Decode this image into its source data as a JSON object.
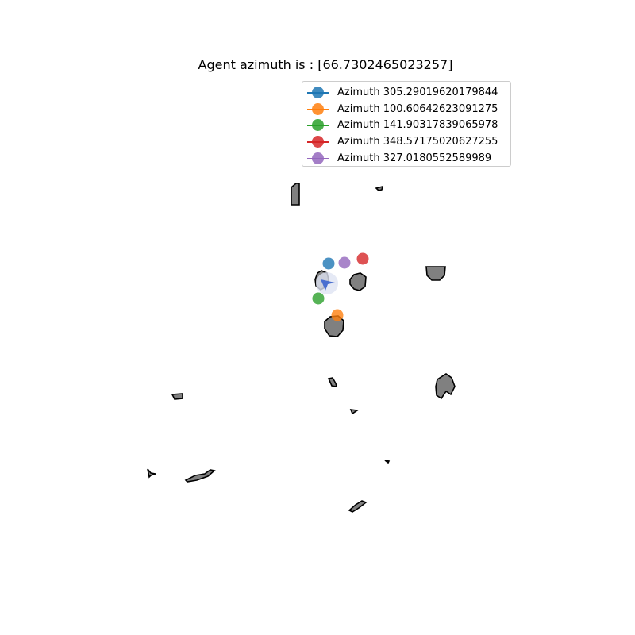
{
  "chart_data": {
    "type": "scatter",
    "title": "Agent azimuth is : [66.7302465023257]",
    "legend_position": "top-right",
    "grid": false,
    "axes_visible": false,
    "series": [
      {
        "name": "Azimuth 305.29019620179844",
        "color": "#1f77b4",
        "x": [
          414
        ],
        "y": [
          332
        ]
      },
      {
        "name": "Azimuth 100.60642623091275",
        "color": "#ff7f0e",
        "x": [
          425
        ],
        "y": [
          397
        ]
      },
      {
        "name": "Azimuth 141.90317839065978",
        "color": "#2ca02c",
        "x": [
          401
        ],
        "y": [
          376
        ]
      },
      {
        "name": "Azimuth 348.57175020627255",
        "color": "#d62728",
        "x": [
          457
        ],
        "y": [
          326
        ]
      },
      {
        "name": "Azimuth 327.0180552589989",
        "color": "#9467bd",
        "x": [
          434
        ],
        "y": [
          331
        ]
      }
    ],
    "agent": {
      "x": 412,
      "y": 357,
      "azimuth": 66.7302465023257,
      "color": "#4a6fd0"
    },
    "obstacle_color": "#808080",
    "obstacle_edge_color": "#000000"
  }
}
